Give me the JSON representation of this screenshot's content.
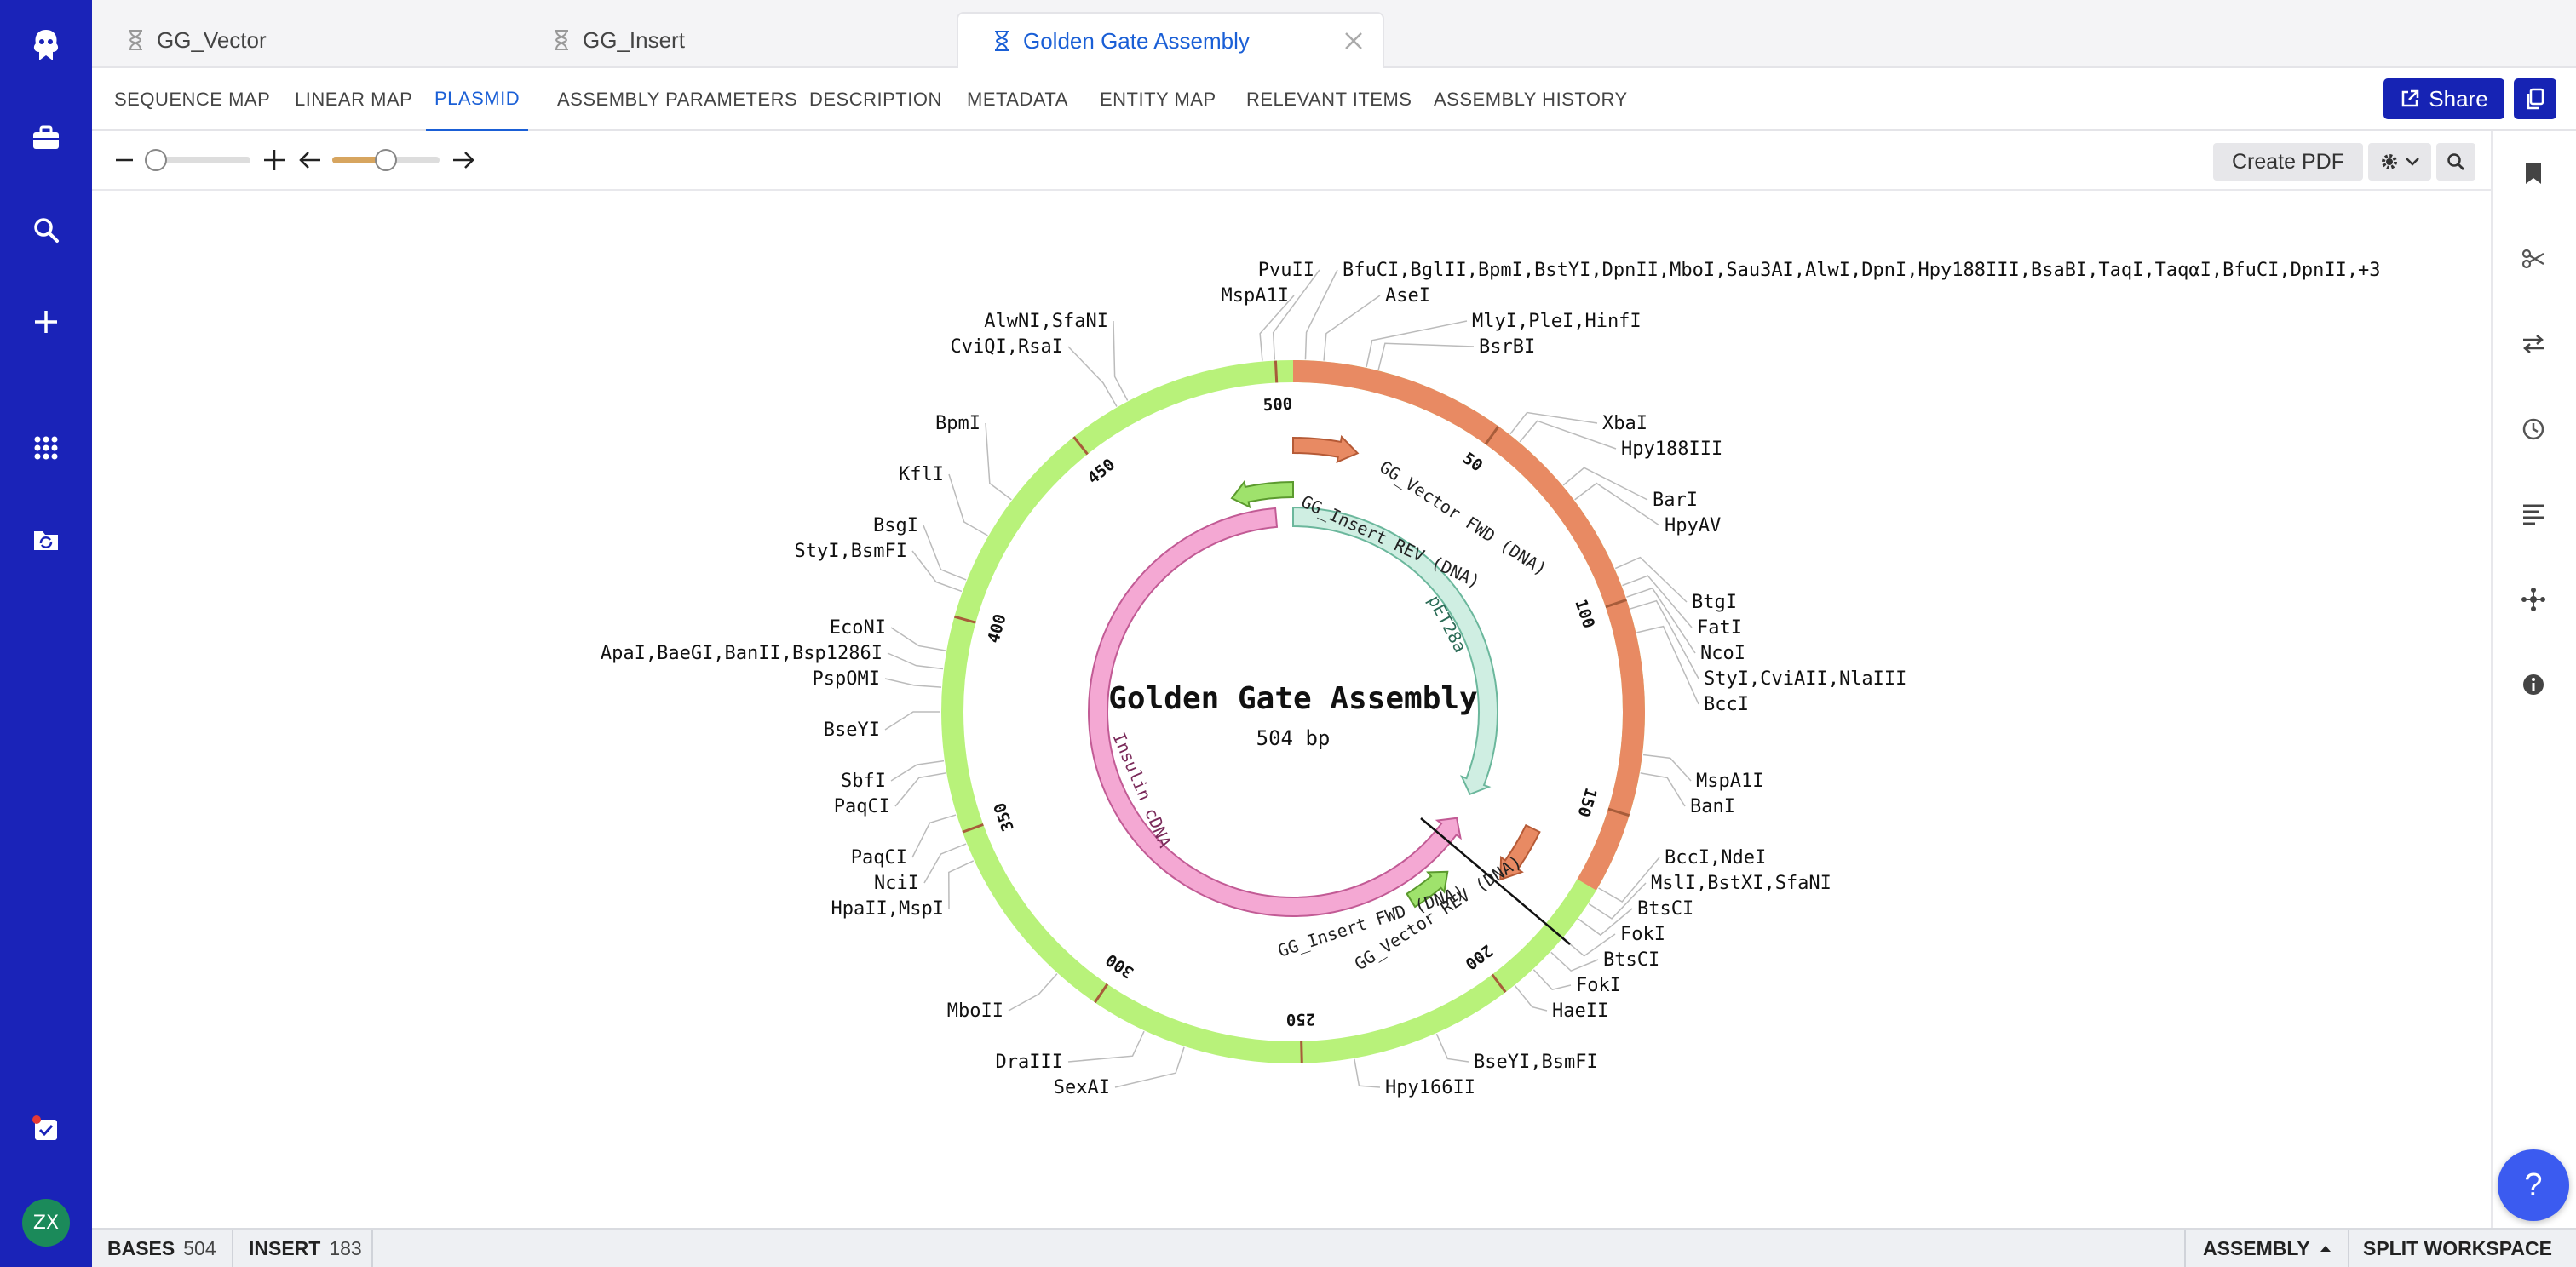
{
  "tabs": [
    {
      "label": "GG_Vector"
    },
    {
      "label": "GG_Insert"
    },
    {
      "label": "Golden Gate Assembly"
    }
  ],
  "subtabs": [
    {
      "label": "SEQUENCE MAP"
    },
    {
      "label": "LINEAR MAP"
    },
    {
      "label": "PLASMID"
    },
    {
      "label": "ASSEMBLY PARAMETERS"
    },
    {
      "label": "DESCRIPTION"
    },
    {
      "label": "METADATA"
    },
    {
      "label": "ENTITY MAP"
    },
    {
      "label": "RELEVANT ITEMS"
    },
    {
      "label": "ASSEMBLY HISTORY"
    }
  ],
  "active_subtab": "PLASMID",
  "share_label": "Share",
  "toolbar": {
    "create_pdf_label": "Create PDF",
    "zoom_level": 0.0,
    "rotation_level": 0.5
  },
  "plasmid": {
    "name": "Golden Gate Assembly",
    "length_label": "504 bp",
    "length": 504,
    "ticks": [
      "500",
      "50",
      "100",
      "150",
      "200",
      "250",
      "300",
      "350",
      "400",
      "450"
    ],
    "features": [
      {
        "name": "GG_Vector FWD (DNA)",
        "color": "#e88a63"
      },
      {
        "name": "GG_Insert REV (DNA)",
        "color": "#9fe26c"
      },
      {
        "name": "pET28a",
        "color": "#cfeee2"
      },
      {
        "name": "Insulin cDNA",
        "color": "#f4a8d3"
      },
      {
        "name": "GG_Insert FWD (DNA)",
        "color": "#9fe26c"
      },
      {
        "name": "GG_Vector REV (DNA)",
        "color": "#e88a63"
      }
    ],
    "enzymes": [
      "PvuII",
      "MspA1I",
      "AlwNI,SfaNI",
      "CviQI,RsaI",
      "BpmI",
      "KflI",
      "BsgI",
      "StyI,BsmFI",
      "EcoNI",
      "ApaI,BaeGI,BanII,Bsp1286I",
      "PspOMI",
      "BseYI",
      "SbfI",
      "PaqCI",
      "PaqCI",
      "NciI",
      "HpaII,MspI",
      "MboII",
      "DraIII",
      "SexAI",
      "BfuCI,BglII,BpmI,BstYI,DpnII,MboI,Sau3AI,AlwI,DpnI,Hpy188III,BsaBI,TaqI,TaqαI,BfuCI,DpnII,+3",
      "AseI",
      "MlyI,PleI,HinfI",
      "BsrBI",
      "XbaI",
      "Hpy188III",
      "BarI",
      "HpyAV",
      "BtgI",
      "FatI",
      "NcoI",
      "StyI,CviAII,NlaIII",
      "BccI",
      "MspA1I",
      "BanI",
      "BccI,NdeI",
      "MslI,BstXI,SfaNI",
      "BtsCI",
      "FokI",
      "BtsCI",
      "FokI",
      "HaeII",
      "BseYI,BsmFI",
      "Hpy166II"
    ],
    "colors": {
      "vector": "#e88a63",
      "insert": "#b8f27a"
    }
  },
  "status": {
    "bases_label": "BASES",
    "bases_value": "504",
    "insert_label": "INSERT",
    "insert_value": "183",
    "assembly_label": "ASSEMBLY",
    "split_label": "SPLIT WORKSPACE"
  },
  "help_label": "?",
  "user_initials": "ZX",
  "accent_color": "#1a23b8"
}
